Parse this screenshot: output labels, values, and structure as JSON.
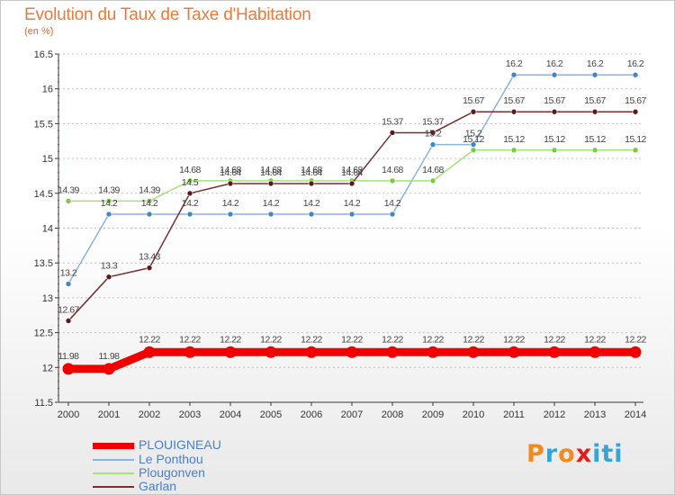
{
  "title": "Evolution du Taux de Taxe d'Habitation",
  "unit": "(en %)",
  "logo": "Proxiti",
  "colors": {
    "title": "#e87a3c",
    "axis": "#333333",
    "grid": "#c0c0c0",
    "legend_text": "#4a7fd0",
    "logo": [
      "#f08a24",
      "#36a3d9",
      "#f08a24",
      "#e31d1d",
      "#36a3d9",
      "#36a3d9",
      "#36a3d9"
    ]
  },
  "chart_data": {
    "type": "line",
    "title": "Evolution du Taux de Taxe d'Habitation",
    "ylabel": "(en %)",
    "xlabel": "",
    "categories": [
      "2000",
      "2001",
      "2002",
      "2003",
      "2004",
      "2005",
      "2006",
      "2007",
      "2008",
      "2009",
      "2010",
      "2011",
      "2012",
      "2013",
      "2014"
    ],
    "ylim": [
      11.5,
      16.5
    ],
    "yticks": [
      11.5,
      12,
      12.5,
      13,
      13.5,
      14,
      14.5,
      15,
      15.5,
      16,
      16.5
    ],
    "ytick_labels": [
      "11.5",
      "12",
      "12.5",
      "13",
      "13.5",
      "14",
      "14.5",
      "15",
      "15.5",
      "16",
      "16.5"
    ],
    "grid": "horizontal dashed",
    "legend": "bottom-left",
    "series": [
      {
        "name": "PLOUIGNEAU",
        "color": "#f00000",
        "marker": "#f00000",
        "thick": true,
        "values": [
          11.98,
          11.98,
          12.22,
          12.22,
          12.22,
          12.22,
          12.22,
          12.22,
          12.22,
          12.22,
          12.22,
          12.22,
          12.22,
          12.22,
          12.22
        ],
        "labels": [
          "11.98",
          "11.98",
          "12.22",
          "12.22",
          "12.22",
          "12.22",
          "12.22",
          "12.22",
          "12.22",
          "12.22",
          "12.22",
          "12.22",
          "12.22",
          "12.22",
          "12.22"
        ]
      },
      {
        "name": "Le Ponthou",
        "color": "#8ab3de",
        "marker": "#3f86c6",
        "thick": false,
        "values": [
          13.2,
          14.2,
          14.2,
          14.2,
          14.2,
          14.2,
          14.2,
          14.2,
          14.2,
          15.2,
          15.2,
          16.2,
          16.2,
          16.2,
          16.2
        ],
        "labels": [
          "13.2",
          "14.2",
          "14.2",
          "14.2",
          "14.2",
          "14.2",
          "14.2",
          "14.2",
          "14.2",
          "15.2",
          "15.2",
          "16.2",
          "16.2",
          "16.2",
          "16.2"
        ]
      },
      {
        "name": "Plougonven",
        "color": "#a6e07a",
        "marker": "#7ac943",
        "thick": false,
        "values": [
          14.39,
          14.39,
          14.39,
          14.68,
          14.68,
          14.68,
          14.68,
          14.68,
          14.68,
          14.68,
          15.12,
          15.12,
          15.12,
          15.12,
          15.12
        ],
        "labels": [
          "14.39",
          "14.39",
          "14.39",
          "14.68",
          "14.68",
          "14.68",
          "14.68",
          "14.68",
          "14.68",
          "14.68",
          "15.12",
          "15.12",
          "15.12",
          "15.12",
          "15.12"
        ]
      },
      {
        "name": "Garlan",
        "color": "#7a2e2e",
        "marker": "#5a1a1a",
        "thick": false,
        "values": [
          12.67,
          13.3,
          13.43,
          14.5,
          14.64,
          14.64,
          14.64,
          14.64,
          15.37,
          15.37,
          15.67,
          15.67,
          15.67,
          15.67,
          15.67
        ],
        "labels": [
          "12.67",
          "13.3",
          "13.43",
          "14.5",
          "14.64",
          "14.64",
          "14.64",
          "14.64",
          "15.37",
          "15.37",
          "15.67",
          "15.67",
          "15.67",
          "15.67",
          "15.67"
        ]
      }
    ]
  }
}
